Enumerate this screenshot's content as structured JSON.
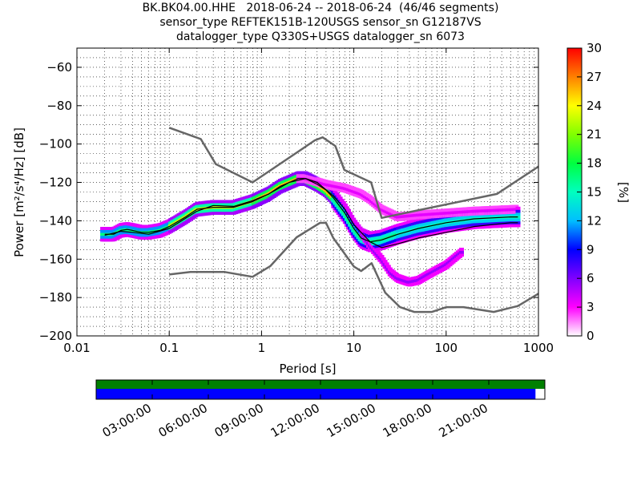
{
  "title_lines": [
    "BK.BK04.00.HHE   2018-06-24 -- 2018-06-24  (46/46 segments)",
    "sensor_type REFTEK151B-120USGS sensor_sn G12187VS",
    "datalogger_type Q330S+USGS datalogger_sn 6073"
  ],
  "colors": {
    "nlnm_nhnm": "#666666",
    "mean": "#000000",
    "mode": "#000000",
    "coverage_available": "#0000ff",
    "coverage_gap": "#ffffff",
    "coverage_top": "#008000"
  },
  "chart_data": {
    "type": "heatmap",
    "xlabel": "Period [s]",
    "ylabel": "Power [m²/s⁴/Hz] [dB]",
    "x_scale": "log",
    "xlim": [
      0.01,
      1000
    ],
    "ylim": [
      -200,
      -50
    ],
    "x_ticks": [
      0.01,
      0.1,
      1,
      10,
      100,
      1000
    ],
    "x_tick_labels": [
      "0.01",
      "0.1",
      "1",
      "10",
      "100",
      "1000"
    ],
    "y_ticks": [
      -200,
      -180,
      -160,
      -140,
      -120,
      -100,
      -80,
      -60
    ],
    "y_tick_labels": [
      "−200",
      "−180",
      "−160",
      "−140",
      "−120",
      "−100",
      "−80",
      "−60"
    ],
    "grid": true,
    "colorbar": {
      "label": "[%]",
      "min": 0,
      "max": 30,
      "ticks": [
        0,
        3,
        6,
        9,
        12,
        15,
        18,
        21,
        24,
        27,
        30
      ],
      "tick_labels": [
        "0",
        "3",
        "6",
        "9",
        "12",
        "15",
        "18",
        "21",
        "24",
        "27",
        "30"
      ]
    },
    "nhnm": {
      "period": [
        0.1,
        0.22,
        0.32,
        0.8,
        3.8,
        4.6,
        6.3,
        7.9,
        15.4,
        20,
        354.8,
        10000
      ],
      "power": [
        -91.5,
        -97.4,
        -110.5,
        -120,
        -98,
        -96.5,
        -101,
        -113.5,
        -120,
        -138.5,
        -126,
        -80
      ]
    },
    "nlnm": {
      "period": [
        0.1,
        0.17,
        0.4,
        0.8,
        1.24,
        2.4,
        4.3,
        5,
        6,
        10,
        12,
        15.6,
        21.9,
        31.6,
        45,
        70,
        101,
        154,
        328,
        600,
        1000
      ],
      "power": [
        -168,
        -166.7,
        -166.7,
        -169.2,
        -163.7,
        -148.6,
        -141.1,
        -141.1,
        -149,
        -163.8,
        -166.2,
        -162.1,
        -177.5,
        -185,
        -187.5,
        -187.5,
        -185,
        -185,
        -187.5,
        -184.4,
        -178
      ]
    },
    "mode_curve": {
      "period": [
        0.02,
        0.025,
        0.03,
        0.035,
        0.04,
        0.05,
        0.06,
        0.08,
        0.1,
        0.15,
        0.2,
        0.3,
        0.5,
        0.8,
        1.2,
        1.6,
        2.0,
        2.5,
        3.0,
        4.0,
        5.0,
        6.0,
        8.0,
        10,
        12,
        15,
        20,
        30,
        50,
        100,
        200,
        500,
        600
      ],
      "power": [
        -147,
        -147,
        -145,
        -144.5,
        -145,
        -146,
        -146,
        -145,
        -143,
        -138,
        -134,
        -133,
        -133,
        -130,
        -126,
        -122,
        -120,
        -118,
        -118,
        -121,
        -124,
        -128,
        -136,
        -144,
        -149,
        -151,
        -150,
        -147,
        -144,
        -141,
        -139,
        -138,
        -138
      ]
    },
    "mean_curve": {
      "period": [
        0.02,
        0.03,
        0.04,
        0.06,
        0.1,
        0.2,
        0.3,
        0.5,
        0.8,
        1.2,
        2.0,
        3.0,
        4.0,
        6.0,
        8.0,
        10,
        15,
        20,
        30,
        50,
        100,
        200,
        500,
        600
      ],
      "power": [
        -147.5,
        -145.5,
        -146,
        -147,
        -144,
        -135,
        -132,
        -132.5,
        -129.5,
        -126,
        -120,
        -118,
        -120,
        -127,
        -134,
        -142,
        -151,
        -154,
        -152,
        -149,
        -146,
        -143,
        -141,
        -141
      ]
    },
    "lower_branch": {
      "period": [
        12,
        15,
        20,
        25,
        30,
        40,
        50,
        70,
        100,
        150
      ],
      "power": [
        -146,
        -153,
        -160,
        -167,
        -170,
        -172,
        -171,
        -167,
        -163,
        -156
      ]
    },
    "upper_branch": {
      "period": [
        3.0,
        5,
        8,
        12,
        15,
        20,
        30,
        50,
        100,
        200,
        600
      ],
      "power": [
        -118,
        -121,
        -123,
        -126,
        -129,
        -134,
        -138,
        -137,
        -136,
        -135,
        -134
      ]
    },
    "x_time_ticks": [
      "03:00:00",
      "06:00:00",
      "09:00:00",
      "12:00:00",
      "15:00:00",
      "18:00:00",
      "21:00:00"
    ],
    "coverage_available_until_hour": 23.5
  }
}
